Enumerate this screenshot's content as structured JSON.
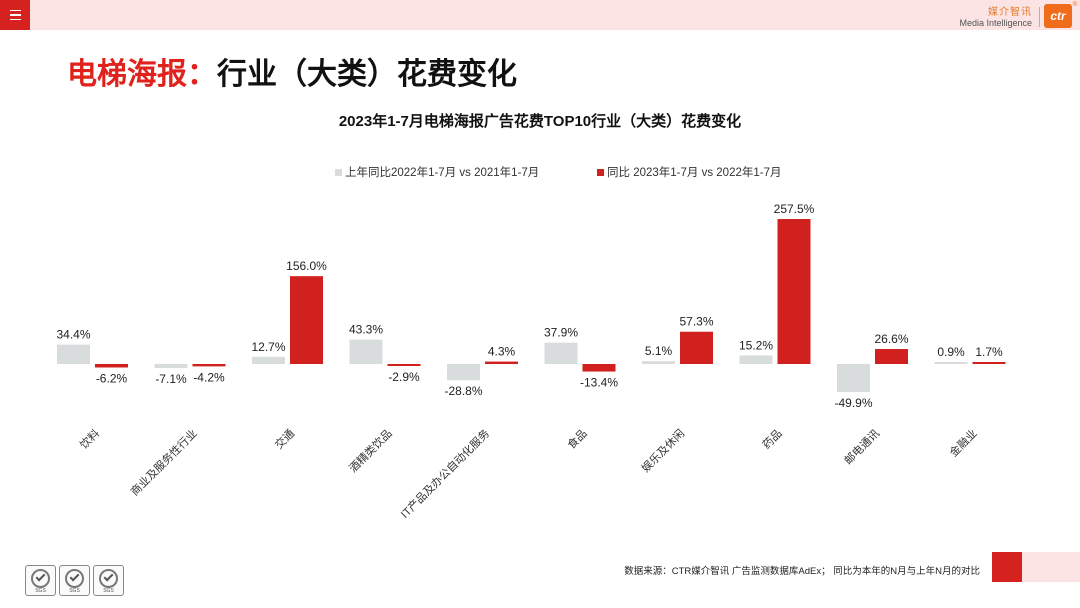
{
  "brand": {
    "name_cn": "媒介智讯",
    "name_en": "Media Intelligence",
    "logo_text": "ctr",
    "logo_mark": "®"
  },
  "page_title": {
    "highlight": "电梯海报：",
    "rest": "行业（大类）花费变化"
  },
  "footer": {
    "note": "数据来源：CTR媒介智讯 广告监测数据库AdEx；   同比为本年的N月与上年N月的对比"
  },
  "badges": [
    {
      "label": "SGS"
    },
    {
      "label": "SGS"
    },
    {
      "label": "SGS"
    }
  ],
  "colors": {
    "accent": "#d6221f",
    "pink": "#fbe4e3",
    "gray_bar": "#d9dcdd",
    "red_bar": "#d0211e"
  },
  "chart_data": {
    "type": "bar",
    "title": "2023年1-7月电梯海报广告花费TOP10行业（大类）花费变化",
    "xlabel": "",
    "ylabel": "",
    "legend_position": "top",
    "grid": false,
    "categories": [
      "饮料",
      "商业及服务性行业",
      "交通",
      "酒精类饮品",
      "IT产品及办公自动化服务",
      "食品",
      "娱乐及休闲",
      "药品",
      "邮电通讯",
      "金融业"
    ],
    "series": [
      {
        "name": "上年同比2022年1-7月 vs 2021年1-7月",
        "color": "#d9dcdd",
        "values": [
          34.4,
          -7.1,
          12.7,
          43.3,
          -28.8,
          37.9,
          5.1,
          15.2,
          -49.9,
          0.9
        ],
        "labels": [
          "34.4%",
          "-7.1%",
          "12.7%",
          "43.3%",
          "-28.8%",
          "37.9%",
          "5.1%",
          "15.2%",
          "-49.9%",
          "0.9%"
        ]
      },
      {
        "name": "同比 2023年1-7月  vs 2022年1-7月",
        "color": "#d0211e",
        "values": [
          -6.2,
          -4.2,
          156.0,
          -2.9,
          4.3,
          -13.4,
          57.3,
          257.5,
          26.6,
          1.7
        ],
        "labels": [
          "-6.2%",
          "-4.2%",
          "156.0%",
          "-2.9%",
          "4.3%",
          "-13.4%",
          "57.3%",
          "257.5%",
          "26.6%",
          "1.7%"
        ]
      }
    ]
  }
}
